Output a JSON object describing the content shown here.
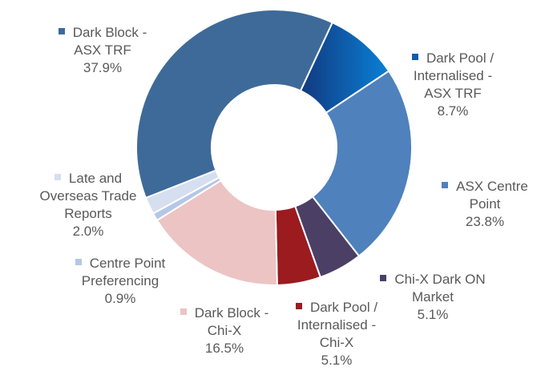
{
  "chart_data": {
    "type": "pie",
    "categories": [
      "Dark Pool / Internalised - ASX TRF",
      "ASX Centre Point",
      "Chi-X Dark ON Market",
      "Dark Pool / Internalised - Chi-X",
      "Dark Block - Chi-X",
      "Centre Point Preferencing",
      "Late and Overseas Trade Reports",
      "Dark Block - ASX TRF"
    ],
    "values": [
      8.7,
      23.8,
      5.1,
      5.1,
      16.5,
      0.9,
      2.0,
      37.9
    ],
    "value_labels": [
      "8.7%",
      "23.8%",
      "5.1%",
      "5.1%",
      "16.5%",
      "0.9%",
      "2.0%",
      "37.9%"
    ],
    "colors": [
      "#0f5cb0",
      "#4f81bd",
      "#4b3f66",
      "#9b1b1f",
      "#ecc4c4",
      "#b4c7e7",
      "#d6dff0",
      "#3e6a99"
    ]
  }
}
